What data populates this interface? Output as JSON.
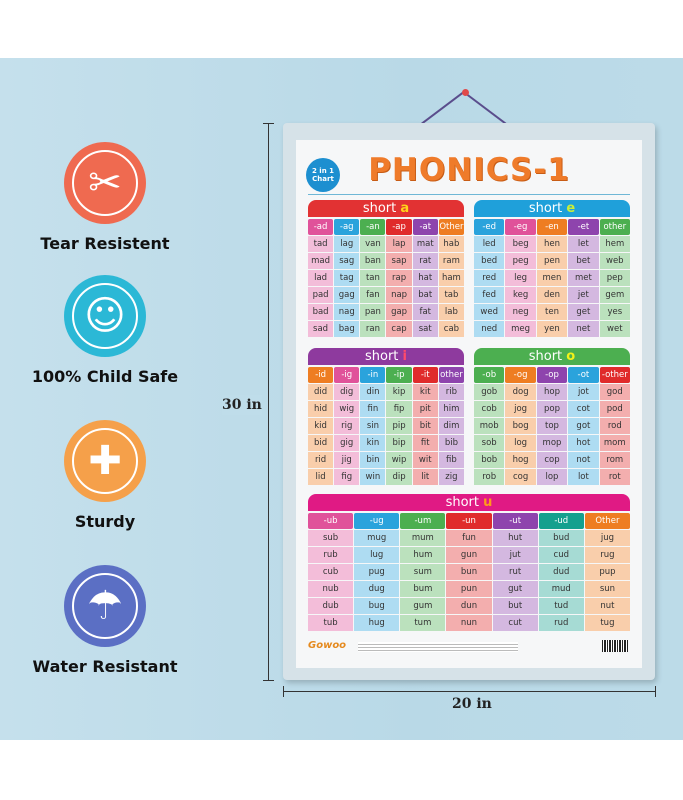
{
  "features": [
    {
      "label": "Tear Resistent",
      "icon": "no-tear-icon",
      "color": "#ef6a50"
    },
    {
      "label": "100% Child Safe",
      "icon": "baby-face-icon",
      "color": "#2bb8d6"
    },
    {
      "label": "Sturdy",
      "icon": "bandage-icon",
      "color": "#f5a04a"
    },
    {
      "label": "Water Resistant",
      "icon": "umbrella-icon",
      "color": "#5b6fc4"
    }
  ],
  "dimensions": {
    "height": "30 in",
    "width": "20 in"
  },
  "poster": {
    "title": "PHONICS-1",
    "badge": "2 in 1 Chart",
    "brand": "Gowoo",
    "tables": [
      {
        "prefix": "short ",
        "vowel": "a",
        "bar_color": "#e23233",
        "vowel_color": "#ffd31a",
        "headers": [
          "-ad",
          "-ag",
          "-an",
          "-ap",
          "-at",
          "Other"
        ],
        "colors": [
          "#e0529a",
          "#2aa3dc",
          "#4caf50",
          "#e02b2b",
          "#8e44ad",
          "#ee7d22"
        ],
        "rows": [
          [
            "tad",
            "lag",
            "van",
            "lap",
            "mat",
            "hab"
          ],
          [
            "mad",
            "sag",
            "ban",
            "sap",
            "rat",
            "ram"
          ],
          [
            "lad",
            "tag",
            "tan",
            "rap",
            "hat",
            "ham"
          ],
          [
            "pad",
            "gag",
            "fan",
            "nap",
            "bat",
            "tab"
          ],
          [
            "bad",
            "nag",
            "pan",
            "gap",
            "fat",
            "lab"
          ],
          [
            "sad",
            "bag",
            "ran",
            "cap",
            "sat",
            "cab"
          ]
        ]
      },
      {
        "prefix": "short ",
        "vowel": "e",
        "bar_color": "#1fa0da",
        "vowel_color": "#c8ee3a",
        "headers": [
          "-ed",
          "-eg",
          "-en",
          "-et",
          "other"
        ],
        "colors": [
          "#2aa3dc",
          "#e0529a",
          "#ee7d22",
          "#8e44ad",
          "#4caf50"
        ],
        "rows": [
          [
            "led",
            "beg",
            "hen",
            "let",
            "hem"
          ],
          [
            "bed",
            "peg",
            "pen",
            "bet",
            "web"
          ],
          [
            "red",
            "leg",
            "men",
            "met",
            "pep"
          ],
          [
            "fed",
            "keg",
            "den",
            "jet",
            "gem"
          ],
          [
            "wed",
            "neg",
            "ten",
            "get",
            "yes"
          ],
          [
            "ned",
            "meg",
            "yen",
            "net",
            "wet"
          ]
        ]
      },
      {
        "prefix": "short ",
        "vowel": "i",
        "bar_color": "#8e3a9e",
        "vowel_color": "#ff4a6a",
        "headers": [
          "-id",
          "-ig",
          "-in",
          "-ip",
          "-it",
          "other"
        ],
        "colors": [
          "#ee7d22",
          "#e0529a",
          "#2aa3dc",
          "#4caf50",
          "#e02b2b",
          "#8e44ad"
        ],
        "rows": [
          [
            "did",
            "dig",
            "din",
            "kip",
            "kit",
            "rib"
          ],
          [
            "hid",
            "wig",
            "fin",
            "fip",
            "pit",
            "him"
          ],
          [
            "kid",
            "rig",
            "sin",
            "pip",
            "bit",
            "dim"
          ],
          [
            "bid",
            "gig",
            "kin",
            "bip",
            "fit",
            "bib"
          ],
          [
            "rid",
            "jig",
            "bin",
            "wip",
            "wit",
            "fib"
          ],
          [
            "lid",
            "fig",
            "win",
            "dip",
            "lit",
            "zig"
          ]
        ]
      },
      {
        "prefix": "short ",
        "vowel": "o",
        "bar_color": "#4caf50",
        "vowel_color": "#f3f21a",
        "headers": [
          "-ob",
          "-og",
          "-op",
          "-ot",
          "-other"
        ],
        "colors": [
          "#4caf50",
          "#ee7d22",
          "#8e44ad",
          "#2aa3dc",
          "#e02b2b"
        ],
        "rows": [
          [
            "gob",
            "dog",
            "hop",
            "jot",
            "god"
          ],
          [
            "cob",
            "jog",
            "pop",
            "cot",
            "pod"
          ],
          [
            "mob",
            "bog",
            "top",
            "got",
            "rod"
          ],
          [
            "sob",
            "log",
            "mop",
            "hot",
            "mom"
          ],
          [
            "bob",
            "hog",
            "cop",
            "not",
            "rom"
          ],
          [
            "rob",
            "cog",
            "lop",
            "lot",
            "rot"
          ]
        ]
      },
      {
        "prefix": "short ",
        "vowel": "u",
        "bar_color": "#e01a84",
        "vowel_color": "#ff9a1a",
        "headers": [
          "-ub",
          "-ug",
          "-um",
          "-un",
          "-ut",
          "-ud",
          "Other"
        ],
        "colors": [
          "#e0529a",
          "#2aa3dc",
          "#4caf50",
          "#e02b2b",
          "#8e44ad",
          "#14a08e",
          "#ee7d22"
        ],
        "rows": [
          [
            "sub",
            "mug",
            "mum",
            "fun",
            "hut",
            "bud",
            "jug"
          ],
          [
            "rub",
            "lug",
            "hum",
            "gun",
            "jut",
            "cud",
            "rug"
          ],
          [
            "cub",
            "pug",
            "sum",
            "bun",
            "rut",
            "dud",
            "pup"
          ],
          [
            "nub",
            "dug",
            "bum",
            "pun",
            "gut",
            "mud",
            "sun"
          ],
          [
            "dub",
            "bug",
            "gum",
            "dun",
            "but",
            "tud",
            "nut"
          ],
          [
            "tub",
            "hug",
            "tum",
            "nun",
            "cut",
            "rud",
            "tug"
          ]
        ]
      }
    ]
  }
}
